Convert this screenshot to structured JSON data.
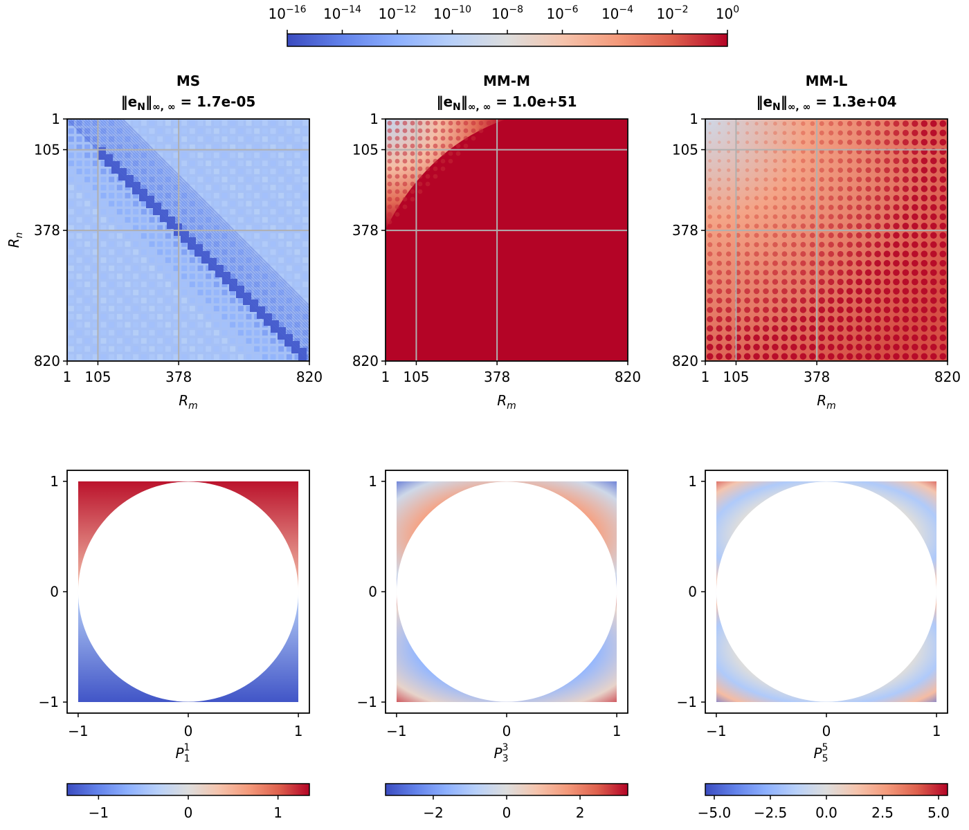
{
  "colormap": {
    "name": "coolwarm",
    "low": "#3b4cc0",
    "mid": "#dddddd",
    "high": "#b40426",
    "over": "#b40426"
  },
  "chart_data": [
    {
      "id": "ms",
      "type": "heatmap",
      "title": "MS",
      "norm_prefix": "‖e",
      "norm_sub": "N",
      "norm_mid": "‖",
      "norm_sub2": "∞, ∞",
      "norm_value": "= 1.7e-05",
      "xlabel_base": "R",
      "xlabel_sub": "m",
      "ylabel_base": "R",
      "ylabel_sub": "n",
      "x_ticks": [
        1,
        105,
        378,
        820
      ],
      "y_ticks": [
        1,
        105,
        378,
        820
      ],
      "range": [
        1,
        820
      ],
      "log10_color_range": [
        -16,
        0
      ],
      "pattern": "diagonal_low_error",
      "max_abs_error": "1.7e-05"
    },
    {
      "id": "mm-m",
      "type": "heatmap",
      "title": "MM-M",
      "norm_prefix": "‖e",
      "norm_sub": "N",
      "norm_mid": "‖",
      "norm_sub2": "∞, ∞",
      "norm_value": "= 1.0e+51",
      "xlabel_base": "R",
      "xlabel_sub": "m",
      "x_ticks": [
        1,
        105,
        378,
        820
      ],
      "y_ticks": [
        1,
        105,
        378,
        820
      ],
      "range": [
        1,
        820
      ],
      "log10_color_range": [
        -16,
        0
      ],
      "pattern": "saturated_except_corner",
      "max_abs_error": "1.0e+51"
    },
    {
      "id": "mm-l",
      "type": "heatmap",
      "title": "MM-L",
      "norm_prefix": "‖e",
      "norm_sub": "N",
      "norm_mid": "‖",
      "norm_sub2": "∞, ∞",
      "norm_value": "= 1.3e+04",
      "xlabel_base": "R",
      "xlabel_sub": "m",
      "x_ticks": [
        1,
        105,
        378,
        820
      ],
      "y_ticks": [
        1,
        105,
        378,
        820
      ],
      "range": [
        1,
        820
      ],
      "log10_color_range": [
        -16,
        0
      ],
      "pattern": "growing_error_dots",
      "max_abs_error": "1.3e+04"
    },
    {
      "id": "p1",
      "type": "heatmap",
      "function": "associated_legendre",
      "degree": 1,
      "order": 1,
      "xlabel_base": "P",
      "xlabel_sub": "1",
      "xlabel_sup": "1",
      "x_ticks": [
        -1,
        0,
        1
      ],
      "y_ticks": [
        -1,
        0,
        1
      ],
      "x_tick_labels": [
        "−1",
        "0",
        "1"
      ],
      "y_tick_labels": [
        "−1",
        "0",
        "1"
      ],
      "xlim": [
        -1.1,
        1.1
      ],
      "ylim": [
        -1.1,
        1.1
      ],
      "colorbar_range": [
        -1.35,
        1.35
      ],
      "colorbar_ticks": [
        -1,
        0,
        1
      ],
      "colorbar_tick_labels": [
        "−1",
        "0",
        "1"
      ]
    },
    {
      "id": "p3",
      "type": "heatmap",
      "function": "associated_legendre",
      "degree": 3,
      "order": 3,
      "xlabel_base": "P",
      "xlabel_sub": "3",
      "xlabel_sup": "3",
      "x_ticks": [
        -1,
        0,
        1
      ],
      "y_ticks": [
        -1,
        0,
        1
      ],
      "x_tick_labels": [
        "−1",
        "0",
        "1"
      ],
      "y_tick_labels": [
        "−1",
        "0",
        "1"
      ],
      "xlim": [
        -1.1,
        1.1
      ],
      "ylim": [
        -1.1,
        1.1
      ],
      "colorbar_range": [
        -3.3,
        3.3
      ],
      "colorbar_ticks": [
        -2,
        0,
        2
      ],
      "colorbar_tick_labels": [
        "−2",
        "0",
        "2"
      ]
    },
    {
      "id": "p5",
      "type": "heatmap",
      "function": "associated_legendre",
      "degree": 5,
      "order": 5,
      "xlabel_base": "P",
      "xlabel_sub": "5",
      "xlabel_sup": "5",
      "x_ticks": [
        -1,
        0,
        1
      ],
      "y_ticks": [
        -1,
        0,
        1
      ],
      "x_tick_labels": [
        "−1",
        "0",
        "1"
      ],
      "y_tick_labels": [
        "−1",
        "0",
        "1"
      ],
      "xlim": [
        -1.1,
        1.1
      ],
      "ylim": [
        -1.1,
        1.1
      ],
      "colorbar_range": [
        -5.4,
        5.4
      ],
      "colorbar_ticks": [
        -5,
        -2.5,
        0,
        2.5,
        5
      ],
      "colorbar_tick_labels": [
        "−5.0",
        "−2.5",
        "0.0",
        "2.5",
        "5.0"
      ]
    }
  ],
  "top_colorbar": {
    "base": "10",
    "exponents": [
      -16,
      -14,
      -12,
      -10,
      -8,
      -6,
      -4,
      -2,
      0
    ],
    "exponent_labels": [
      "−16",
      "−14",
      "−12",
      "−10",
      "−8",
      "−6",
      "−4",
      "−2",
      "0"
    ],
    "range_exponent": [
      -16,
      0
    ]
  }
}
